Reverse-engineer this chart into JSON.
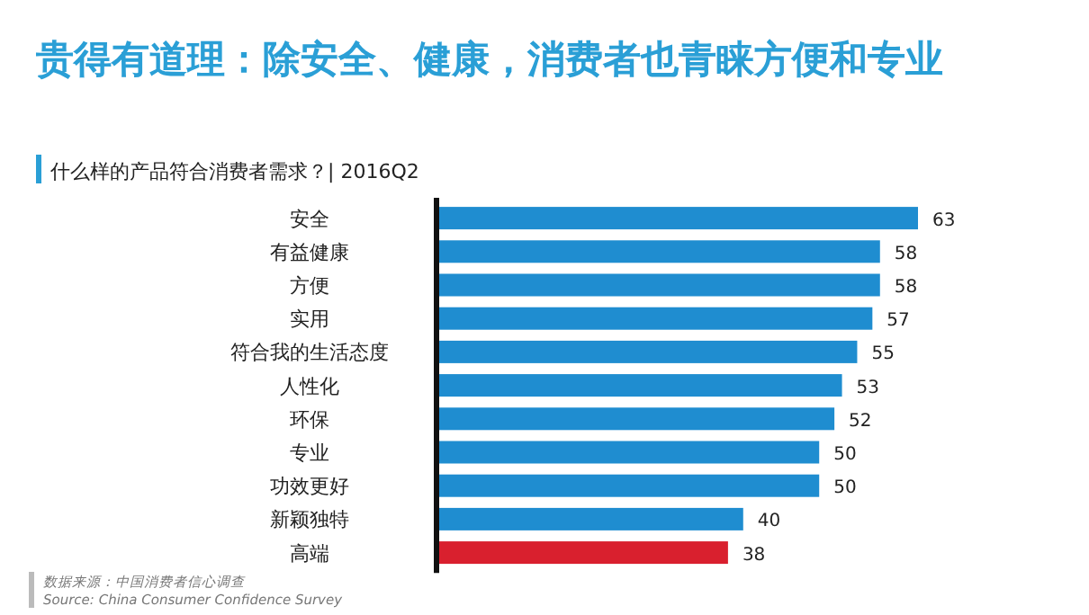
{
  "chart_data": {
    "type": "bar",
    "orientation": "horizontal",
    "data_labels": true,
    "title": "贵得有道理：除安全、健康，消费者也青睐方便和专业",
    "subtitle": "什么样的产品符合消费者需求？| 2016Q2",
    "categories": [
      "安全",
      "有益健康",
      "方便",
      "实用",
      "符合我的生活态度",
      "人性化",
      "环保",
      "专业",
      "功效更好",
      "新颖独特",
      "高端"
    ],
    "values": [
      63,
      58,
      58,
      57,
      55,
      53,
      52,
      50,
      50,
      40,
      38
    ],
    "colors": [
      "#1f8dd0",
      "#1f8dd0",
      "#1f8dd0",
      "#1f8dd0",
      "#1f8dd0",
      "#1f8dd0",
      "#1f8dd0",
      "#1f8dd0",
      "#1f8dd0",
      "#1f8dd0",
      "#d9202e"
    ],
    "annotations": [
      "数据来源：中国消费者信心调查",
      "Source: China Consumer Confidence Survey"
    ]
  }
}
